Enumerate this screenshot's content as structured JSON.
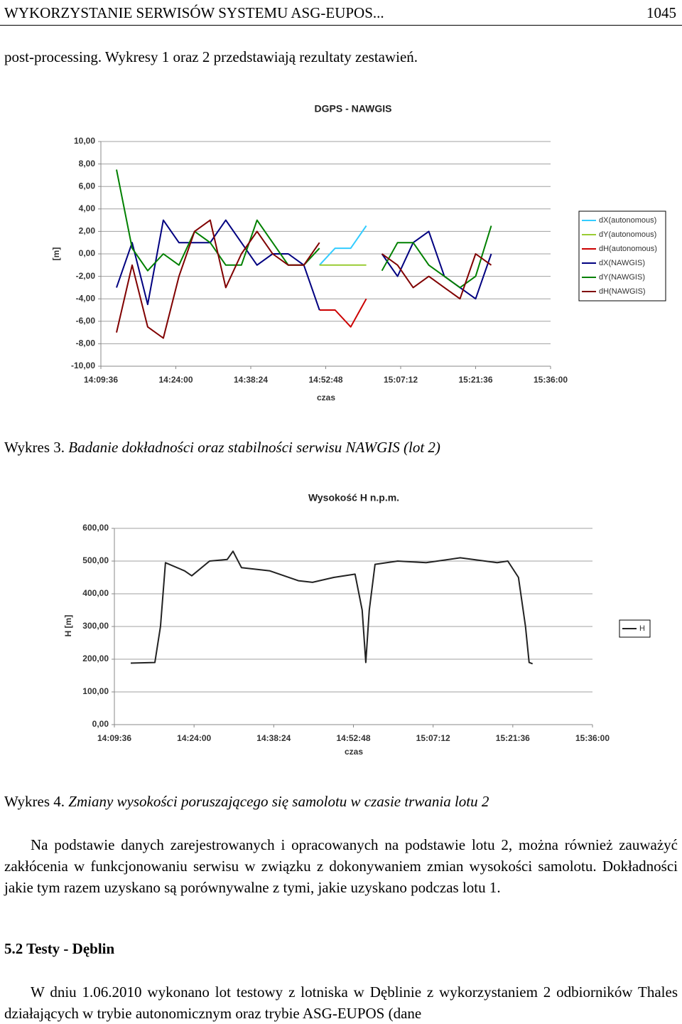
{
  "header": {
    "title": "WYKORZYSTANIE SERWISÓW SYSTEMU ASG-EUPOS...",
    "page": "1045"
  },
  "intro": "post-processing. Wykresy 1 oraz 2 przedstawiają rezultaty zestawień.",
  "caption_3": {
    "label": "Wykres 3.",
    "text": "Badanie dokładności oraz stabilności serwisu NAWGIS (lot 2)"
  },
  "caption_4": {
    "label": "Wykres 4.",
    "text": "Zmiany wysokości poruszającego się samolotu w czasie trwania lotu 2"
  },
  "paragraph": "Na podstawie danych zarejestrowanych i opracowanych na podstawie lotu 2, można również zauważyć zakłócenia w funkcjonowaniu serwisu w związku z dokonywaniem zmian wysokości samolotu. Dokładności jakie tym razem uzyskano są porównywalne z tymi, jakie uzyskano podczas lotu 1.",
  "section_heading": "5.2 Testy  - Dęblin",
  "closing_paragraph": "W dniu 1.06.2010 wykonano lot testowy z lotniska w Dęblinie z wykorzystaniem 2 odbiorników Thales działających w trybie autonomicznym oraz trybie ASG-EUPOS (dane",
  "chart_data": [
    {
      "type": "line",
      "title": "DGPS - NAWGIS",
      "x_label": "czas",
      "y_label": "[m]",
      "x": [
        "14:12:36",
        "14:15:36",
        "14:18:36",
        "14:21:36",
        "14:24:36",
        "14:27:36",
        "14:30:36",
        "14:33:36",
        "14:36:36",
        "14:39:36",
        "14:42:36",
        "14:45:36",
        "14:48:36",
        "14:51:36",
        "14:54:36",
        "14:57:36",
        "15:00:36",
        "15:03:36",
        "15:06:36",
        "15:09:36",
        "15:12:36",
        "15:15:36",
        "15:18:36",
        "15:21:36",
        "15:24:36"
      ],
      "xlim": [
        "14:09:36",
        "15:36:00"
      ],
      "xticks": [
        "14:09:36",
        "14:24:00",
        "14:38:24",
        "14:52:48",
        "15:07:12",
        "15:21:36",
        "15:36:00"
      ],
      "ylim": [
        -10,
        10
      ],
      "yticks": [
        {
          "value": -10,
          "label": "-10,00"
        },
        {
          "value": -8,
          "label": "-8,00"
        },
        {
          "value": -6,
          "label": "-6,00"
        },
        {
          "value": -4,
          "label": "-4,00"
        },
        {
          "value": -2,
          "label": "-2,00"
        },
        {
          "value": 0,
          "label": "0,00"
        },
        {
          "value": 2,
          "label": "2,00"
        },
        {
          "value": 4,
          "label": "4,00"
        },
        {
          "value": 6,
          "label": "6,00"
        },
        {
          "value": 8,
          "label": "8,00"
        },
        {
          "value": 10,
          "label": "10,00"
        }
      ],
      "grid": true,
      "legend": "right",
      "series": [
        {
          "name": "dX(autonomous)",
          "color": "#33ccff",
          "values": [
            null,
            null,
            null,
            null,
            null,
            null,
            null,
            null,
            null,
            null,
            null,
            null,
            null,
            -1,
            0.5,
            0.5,
            2.5,
            null,
            null,
            null,
            null,
            null,
            null,
            null,
            null
          ]
        },
        {
          "name": "dY(autonomous)",
          "color": "#99cc33",
          "values": [
            null,
            null,
            null,
            null,
            null,
            null,
            null,
            null,
            null,
            null,
            null,
            null,
            null,
            -1,
            -1,
            -1,
            -1,
            null,
            null,
            null,
            null,
            null,
            null,
            null,
            null
          ]
        },
        {
          "name": "dH(autonomous)",
          "color": "#cc0000",
          "values": [
            null,
            null,
            null,
            null,
            null,
            null,
            null,
            null,
            null,
            null,
            null,
            null,
            null,
            -5,
            -5,
            -6.5,
            -4,
            null,
            null,
            null,
            null,
            null,
            null,
            null,
            null
          ]
        },
        {
          "name": "dX(NAWGIS)",
          "color": "#000080",
          "values": [
            -3,
            1,
            -4.5,
            3,
            1,
            1,
            1,
            3,
            1,
            -1,
            0,
            0,
            -1,
            -5,
            null,
            null,
            null,
            0,
            -2,
            1,
            2,
            -2,
            -3,
            -4,
            0
          ]
        },
        {
          "name": "dY(NAWGIS)",
          "color": "#008000",
          "values": [
            7.5,
            0.5,
            -1.5,
            0,
            -1,
            2,
            1,
            -1,
            -1,
            3,
            1,
            -1,
            -1,
            0.5,
            null,
            null,
            null,
            -1.5,
            1,
            1,
            -1,
            -2,
            -3,
            -2,
            2.5
          ]
        },
        {
          "name": "dH(NAWGIS)",
          "color": "#800000",
          "values": [
            -7,
            -1,
            -6.5,
            -7.5,
            -2,
            2,
            3,
            -3,
            0,
            2,
            0,
            -1,
            -1,
            1,
            null,
            null,
            null,
            0,
            -1,
            -3,
            -2,
            -3,
            -4,
            0,
            -1
          ]
        }
      ]
    },
    {
      "type": "line",
      "title": "Wysokość H n.p.m.",
      "x_label": "czas",
      "y_label": "H [m]",
      "x": [
        "14:12:33",
        "14:16:55",
        "14:17:56",
        "14:18:50",
        "14:22:18",
        "14:23:35",
        "14:26:48",
        "14:30:00",
        "14:31:02",
        "14:32:34",
        "14:37:42",
        "14:42:50",
        "14:45:24",
        "14:49:15",
        "14:53:06",
        "14:54:23",
        "14:55:02",
        "14:55:40",
        "14:56:42",
        "15:00:48",
        "15:05:56",
        "15:12:06",
        "15:18:46",
        "15:20:42",
        "15:22:37",
        "15:23:54",
        "15:24:33",
        "15:25:11"
      ],
      "xlim": [
        "14:09:36",
        "15:36:00"
      ],
      "xticks": [
        "14:09:36",
        "14:24:00",
        "14:38:24",
        "14:52:48",
        "15:07:12",
        "15:21:36",
        "15:36:00"
      ],
      "ylim": [
        0,
        600
      ],
      "yticks": [
        {
          "value": 0,
          "label": "0,00"
        },
        {
          "value": 100,
          "label": "100,00"
        },
        {
          "value": 200,
          "label": "200,00"
        },
        {
          "value": 300,
          "label": "300,00"
        },
        {
          "value": 400,
          "label": "400,00"
        },
        {
          "value": 500,
          "label": "500,00"
        },
        {
          "value": 600,
          "label": "600,00"
        }
      ],
      "grid": true,
      "legend": "right",
      "series": [
        {
          "name": "H",
          "color": "#222222",
          "values": [
            188,
            190,
            300,
            495,
            470,
            455,
            500,
            505,
            530,
            480,
            470,
            440,
            435,
            450,
            460,
            350,
            190,
            350,
            490,
            500,
            495,
            510,
            495,
            500,
            450,
            300,
            190,
            186
          ]
        }
      ]
    }
  ]
}
